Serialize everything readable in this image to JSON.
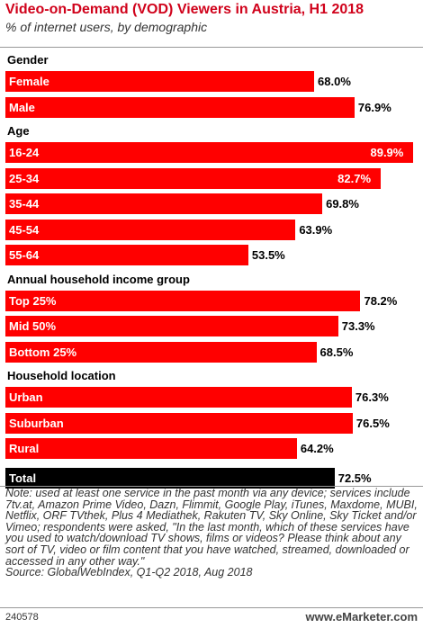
{
  "title": "Video-on-Demand (VOD) Viewers in Austria, H1 2018",
  "subtitle": "% of internet users, by demographic",
  "chart_data": {
    "type": "bar",
    "orientation": "horizontal",
    "unit": "%",
    "xlim": [
      0,
      90
    ],
    "grid": false,
    "legend": "none",
    "colors": {
      "bar": "#ff0000",
      "total": "#000000"
    },
    "groups": [
      {
        "label": "Gender",
        "items": [
          {
            "label": "Female",
            "value": 68.0,
            "display": "68.0%"
          },
          {
            "label": "Male",
            "value": 76.9,
            "display": "76.9%"
          }
        ]
      },
      {
        "label": "Age",
        "items": [
          {
            "label": "16-24",
            "value": 89.9,
            "display": "89.9%"
          },
          {
            "label": "25-34",
            "value": 82.7,
            "display": "82.7%"
          },
          {
            "label": "35-44",
            "value": 69.8,
            "display": "69.8%"
          },
          {
            "label": "45-54",
            "value": 63.9,
            "display": "63.9%"
          },
          {
            "label": "55-64",
            "value": 53.5,
            "display": "53.5%"
          }
        ]
      },
      {
        "label": "Annual household income group",
        "items": [
          {
            "label": "Top 25%",
            "value": 78.2,
            "display": "78.2%"
          },
          {
            "label": "Mid 50%",
            "value": 73.3,
            "display": "73.3%"
          },
          {
            "label": "Bottom 25%",
            "value": 68.5,
            "display": "68.5%"
          }
        ]
      },
      {
        "label": "Household location",
        "items": [
          {
            "label": "Urban",
            "value": 76.3,
            "display": "76.3%"
          },
          {
            "label": "Suburban",
            "value": 76.5,
            "display": "76.5%"
          },
          {
            "label": "Rural",
            "value": 64.2,
            "display": "64.2%"
          }
        ]
      },
      {
        "label": "",
        "items": [
          {
            "label": "Total",
            "value": 72.5,
            "display": "72.5%",
            "total": true
          }
        ]
      }
    ]
  },
  "note": "Note: used at least one service in the past month via any device; services include 7tv.at, Amazon Prime Video, Dazn, Flimmit, Google Play, iTunes, Maxdome, MUBI, Netflix, ORF TVthek, Plus 4 Mediathek, Rakuten TV, Sky Online, Sky Ticket and/or Vimeo; respondents were asked, \"In the last month, which of these services have you used to watch/download TV shows, films or videos? Please think about any sort of TV, video or film content that you have watched, streamed, downloaded or accessed in any other way.\"",
  "source": "Source: GlobalWebIndex, Q1-Q2 2018, Aug 2018",
  "footer": {
    "id": "240578",
    "brand": "www.eMarketer.com"
  }
}
